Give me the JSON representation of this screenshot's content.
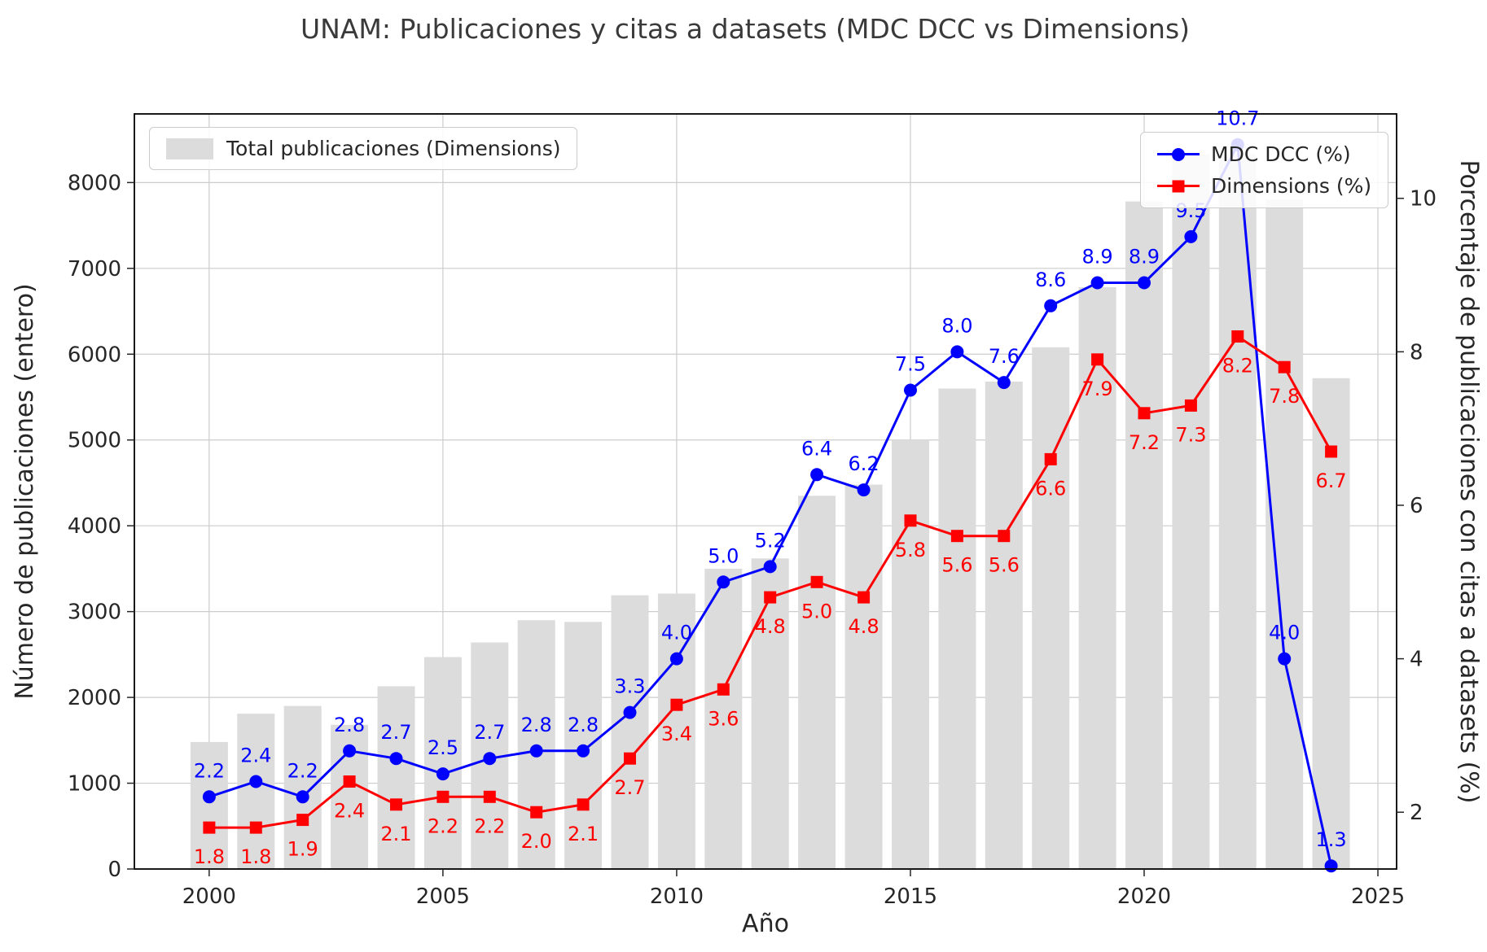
{
  "chart_data": {
    "type": "combo-bar-line",
    "title": "UNAM: Publicaciones y citas a datasets (MDC DCC vs Dimensions)",
    "xlabel": "Año",
    "ylabel_left": "Número de publicaciones (entero)",
    "ylabel_right": "Porcentaje de publicaciones con citas a datasets (%)",
    "years": [
      2000,
      2001,
      2002,
      2003,
      2004,
      2005,
      2006,
      2007,
      2008,
      2009,
      2010,
      2011,
      2012,
      2013,
      2014,
      2015,
      2016,
      2017,
      2018,
      2019,
      2020,
      2021,
      2022,
      2023,
      2024
    ],
    "bars": {
      "label": "Total publicaciones (Dimensions)",
      "color": "#dcdcdc",
      "axis": "left",
      "values": [
        1480,
        1810,
        1900,
        1680,
        2130,
        2470,
        2640,
        2900,
        2880,
        3190,
        3210,
        3500,
        3620,
        4350,
        4480,
        5000,
        5600,
        5680,
        6080,
        6780,
        7780,
        8330,
        8330,
        7800,
        5720
      ]
    },
    "series": [
      {
        "label": "MDC DCC (%)",
        "color": "#0000ff",
        "marker": "circle",
        "axis": "right",
        "label_position": "above",
        "values": [
          2.2,
          2.4,
          2.2,
          2.8,
          2.7,
          2.5,
          2.7,
          2.8,
          2.8,
          3.3,
          4.0,
          5.0,
          5.2,
          6.4,
          6.2,
          7.5,
          8.0,
          7.6,
          8.6,
          8.9,
          8.9,
          9.5,
          10.7,
          4.0,
          1.3
        ]
      },
      {
        "label": "Dimensions (%)",
        "color": "#ff0000",
        "marker": "square",
        "axis": "right",
        "label_position": "below",
        "values": [
          1.8,
          1.8,
          1.9,
          2.4,
          2.1,
          2.2,
          2.2,
          2.0,
          2.1,
          2.7,
          3.4,
          3.6,
          4.8,
          5.0,
          4.8,
          5.8,
          5.6,
          5.6,
          6.6,
          7.9,
          7.2,
          7.3,
          8.2,
          7.8,
          6.7
        ]
      }
    ],
    "left_axis": {
      "ticks": [
        0,
        1000,
        2000,
        3000,
        4000,
        5000,
        6000,
        7000,
        8000
      ],
      "range": [
        0,
        8800
      ]
    },
    "right_axis": {
      "ticks": [
        2,
        4,
        6,
        8,
        10
      ],
      "range": [
        1.26,
        11.1
      ]
    },
    "x_axis": {
      "ticks": [
        2000,
        2005,
        2010,
        2015,
        2020,
        2025
      ],
      "range": [
        1998.4,
        2025.4
      ]
    },
    "grid": true,
    "legend_positions": {
      "bars": "upper left",
      "lines": "upper right"
    },
    "colors": {
      "grid": "#cccccc",
      "spine": "#000000",
      "tick_text": "#262626",
      "title_text": "#3a3a3a"
    }
  }
}
